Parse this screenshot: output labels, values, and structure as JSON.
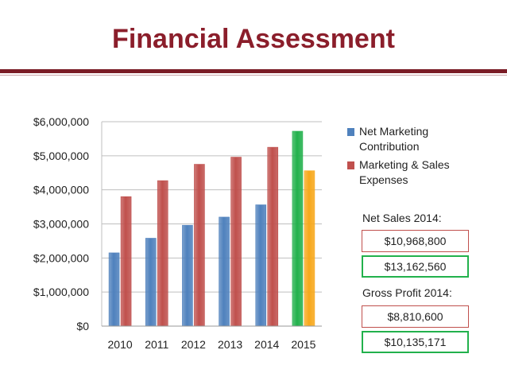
{
  "header": {
    "title": "Financial Assessment"
  },
  "chart_data": {
    "type": "bar",
    "categories": [
      "2010",
      "2011",
      "2012",
      "2013",
      "2014",
      "2015"
    ],
    "series": [
      {
        "name": "Net Marketing Contribution",
        "values": [
          2150000,
          2580000,
          2960000,
          3200000,
          3560000,
          5720000
        ],
        "colors": [
          "#4f81bd",
          "#4f81bd",
          "#4f81bd",
          "#4f81bd",
          "#4f81bd",
          "#22b14c"
        ]
      },
      {
        "name": "Marketing & Sales Expenses",
        "values": [
          3800000,
          4270000,
          4750000,
          4960000,
          5250000,
          4560000
        ],
        "colors": [
          "#c0504d",
          "#c0504d",
          "#c0504d",
          "#c0504d",
          "#c0504d",
          "#f7a81b"
        ]
      }
    ],
    "ylim": [
      0,
      6000000
    ],
    "yticks": [
      0,
      1000000,
      2000000,
      3000000,
      4000000,
      5000000,
      6000000
    ],
    "ytick_labels": [
      "$0",
      "$1,000,000",
      "$2,000,000",
      "$3,000,000",
      "$4,000,000",
      "$5,000,000",
      "$6,000,000"
    ],
    "grid": true,
    "legend_position": "right"
  },
  "legend": {
    "items": [
      {
        "label": "Net Marketing Contribution",
        "color": "#4f81bd"
      },
      {
        "label": "Marketing & Sales Expenses",
        "color": "#c0504d"
      }
    ]
  },
  "panel": {
    "net_sales": {
      "label": "Net Sales 2014:",
      "value_2014": "$10,968,800",
      "value_projected": "$13,162,560"
    },
    "gross_profit": {
      "label": "Gross Profit 2014:",
      "value_2014": "$8,810,600",
      "value_projected": "$10,135,171"
    }
  },
  "colors": {
    "title": "#8b1e2b",
    "rule": "#7a1c26",
    "blue": "#4f81bd",
    "red": "#c0504d",
    "green": "#22b14c",
    "orange": "#f7a81b"
  }
}
